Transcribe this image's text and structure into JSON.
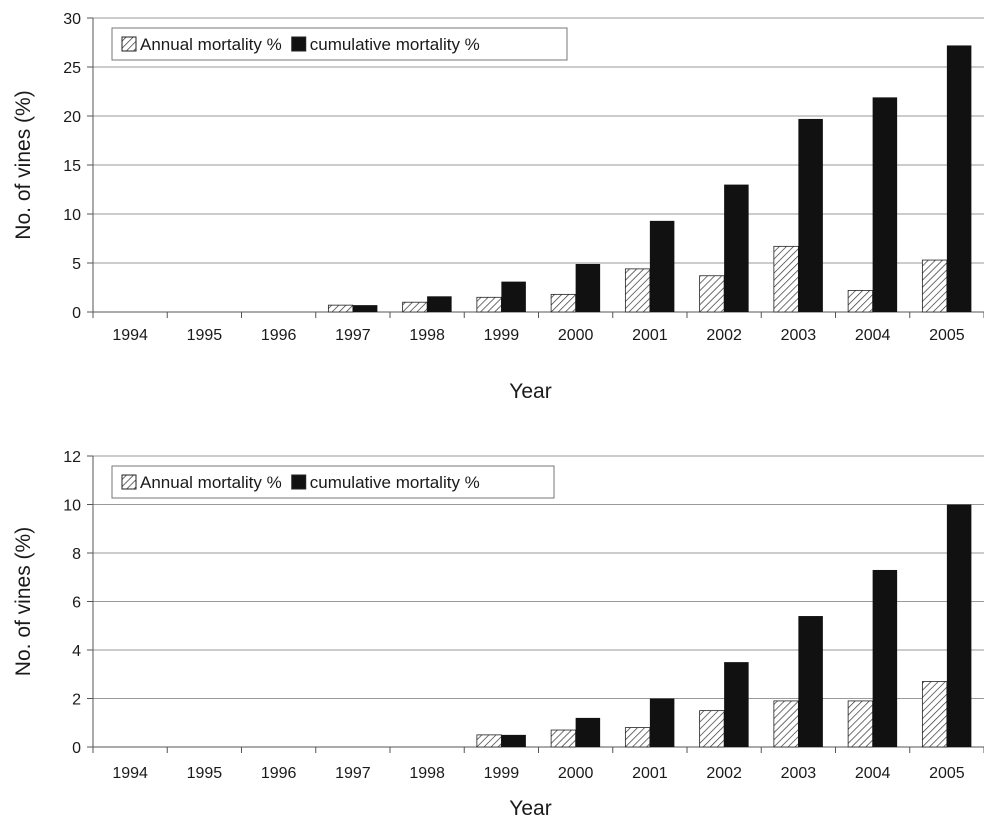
{
  "chart_data": [
    {
      "type": "bar",
      "categories": [
        "1994",
        "1995",
        "1996",
        "1997",
        "1998",
        "1999",
        "2000",
        "2001",
        "2002",
        "2003",
        "2004",
        "2005"
      ],
      "series": [
        {
          "name": "Annual mortality %",
          "values": [
            0,
            0,
            0,
            0.7,
            1.0,
            1.5,
            1.8,
            4.4,
            3.7,
            6.7,
            2.2,
            5.3
          ],
          "pattern": "hatched"
        },
        {
          "name": "cumulative mortality %",
          "values": [
            0,
            0,
            0,
            0.7,
            1.6,
            3.1,
            4.9,
            9.3,
            13.0,
            19.7,
            21.9,
            27.2
          ],
          "color": "#111111"
        }
      ],
      "xlabel": "Year",
      "ylabel": "No. of vines (%)",
      "ylim": [
        0,
        30
      ],
      "yticks": [
        0,
        5,
        10,
        15,
        20,
        25,
        30
      ],
      "grid": true,
      "legend": "top-left"
    },
    {
      "type": "bar",
      "categories": [
        "1994",
        "1995",
        "1996",
        "1997",
        "1998",
        "1999",
        "2000",
        "2001",
        "2002",
        "2003",
        "2004",
        "2005"
      ],
      "series": [
        {
          "name": "Annual mortality %",
          "values": [
            0,
            0,
            0,
            0,
            0,
            0.5,
            0.7,
            0.8,
            1.5,
            1.9,
            1.9,
            2.7
          ],
          "pattern": "hatched"
        },
        {
          "name": "cumulative mortality %",
          "values": [
            0,
            0,
            0,
            0,
            0,
            0.5,
            1.2,
            2.0,
            3.5,
            5.4,
            7.3,
            10.0
          ],
          "color": "#111111"
        }
      ],
      "xlabel": "Year",
      "ylabel": "No. of vines (%)",
      "ylim": [
        0,
        12
      ],
      "yticks": [
        0,
        2,
        4,
        6,
        8,
        10,
        12
      ],
      "grid": true,
      "legend": "top-left"
    }
  ]
}
